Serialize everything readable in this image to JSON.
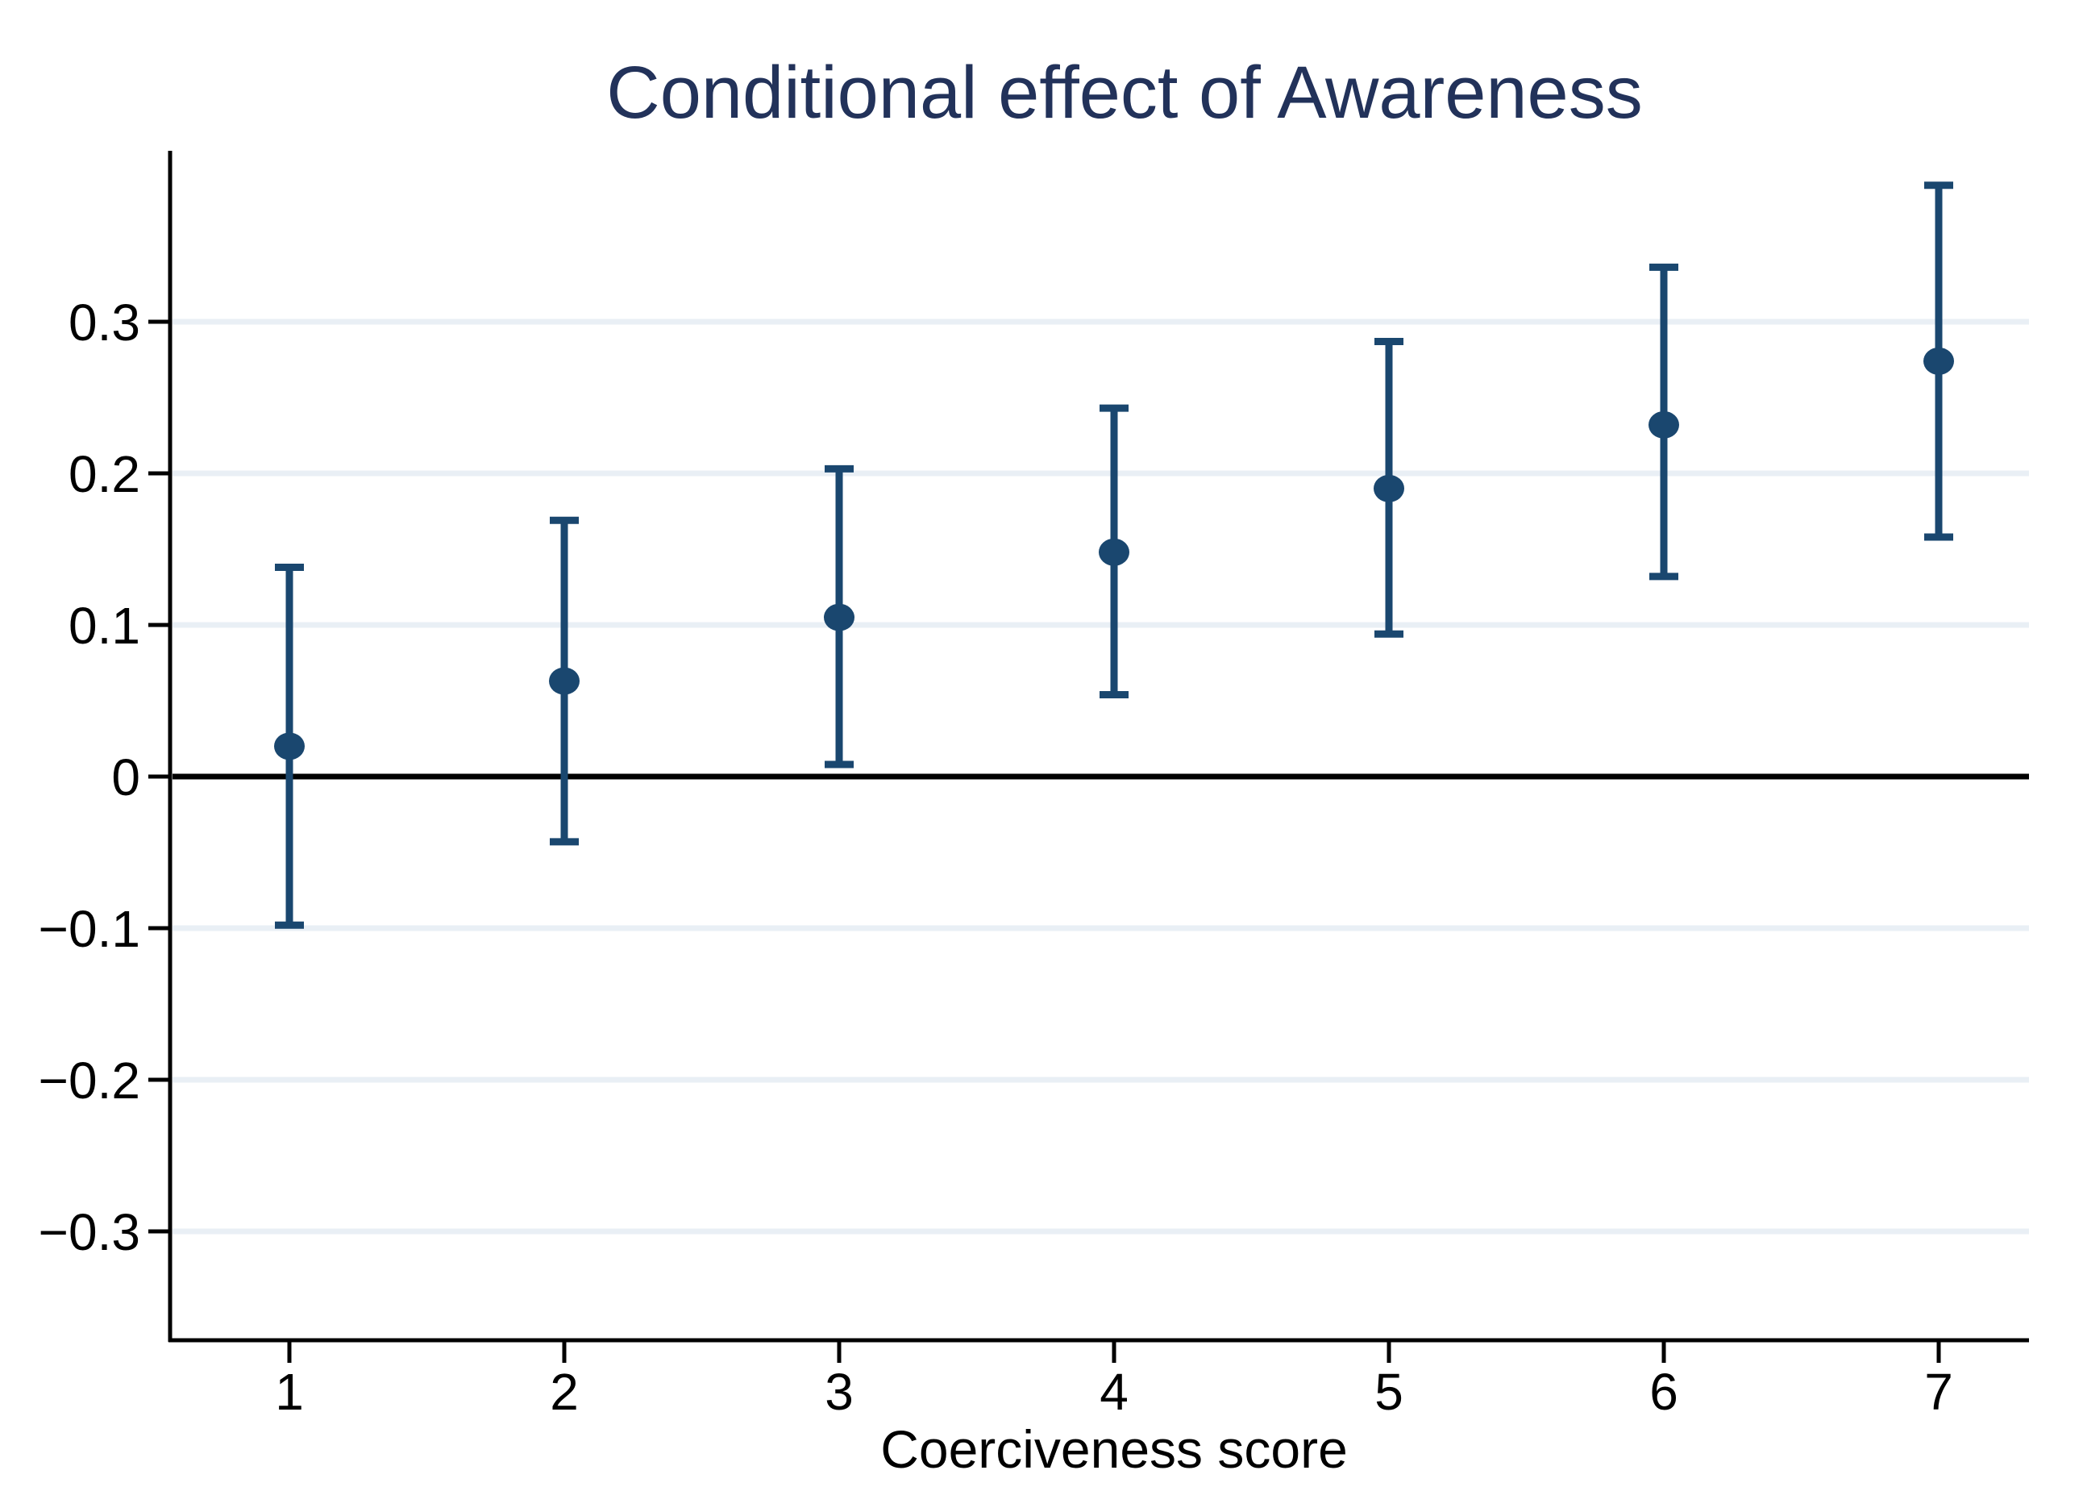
{
  "chart_data": {
    "type": "scatter",
    "subtype": "point-estimates-with-confidence-intervals",
    "title": "Conditional effect of Awareness",
    "xlabel": "Coerciveness score",
    "ylabel": "",
    "categories": [
      "1",
      "2",
      "3",
      "4",
      "5",
      "6",
      "7"
    ],
    "series": [
      {
        "name": "Conditional effect of Awareness",
        "values": [
          0.02,
          0.063,
          0.105,
          0.148,
          0.19,
          0.232,
          0.274
        ],
        "ci_low": [
          -0.098,
          -0.043,
          0.008,
          0.054,
          0.094,
          0.132,
          0.158
        ],
        "ci_high": [
          0.138,
          0.169,
          0.203,
          0.243,
          0.287,
          0.336,
          0.39
        ]
      }
    ],
    "ylim": [
      -0.372,
      0.411
    ],
    "yticks": [
      0.3,
      0.2,
      0.1,
      0,
      -0.1,
      -0.2,
      -0.3
    ],
    "ytick_labels": [
      "0.3",
      "0.2",
      "0.1",
      "0",
      "−0.1",
      "−0.2",
      "−0.3"
    ],
    "baseline": 0,
    "grid": true,
    "legend": "none",
    "colors": {
      "marker": "#1a476f",
      "error_bar": "#1a476f",
      "title": "#22325a",
      "grid_line": "#e9eff5",
      "axis": "#000000",
      "zero_line": "#000000",
      "background": "#ffffff"
    }
  }
}
